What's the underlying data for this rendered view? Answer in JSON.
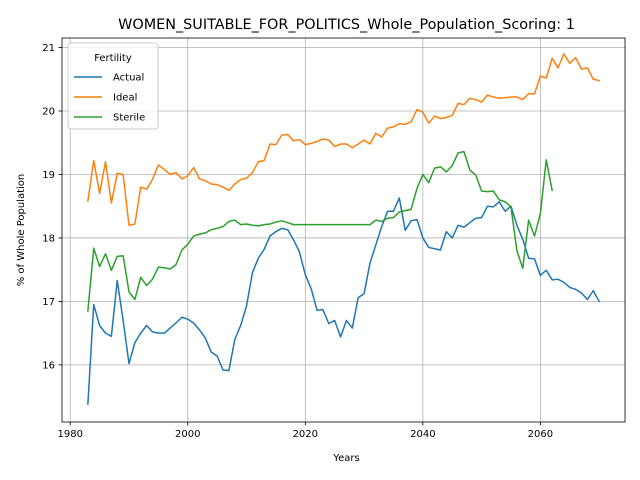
{
  "chart_data": {
    "type": "line",
    "title": "WOMEN_SUITABLE_FOR_POLITICS_Whole_Population_Scoring: 1",
    "xlabel": "Years",
    "ylabel": "% of Whole Population",
    "xlim": [
      1978.6,
      2074.4
    ],
    "ylim": [
      15.1,
      21.15
    ],
    "xticks": [
      1980,
      2000,
      2020,
      2040,
      2060
    ],
    "yticks": [
      16,
      17,
      18,
      19,
      20,
      21
    ],
    "grid": true,
    "legend": {
      "title": "Fertility",
      "placement": "top-left"
    },
    "series": [
      {
        "name": "Actual",
        "color": "#1f77b4",
        "x": [
          1983,
          1984,
          1985,
          1986,
          1987,
          1988,
          1989,
          1990,
          1991,
          1992,
          1993,
          1994,
          1995,
          1996,
          1997,
          1998,
          1999,
          2000,
          2001,
          2002,
          2003,
          2004,
          2005,
          2006,
          2007,
          2008,
          2009,
          2010,
          2011,
          2012,
          2013,
          2014,
          2015,
          2016,
          2017,
          2018,
          2019,
          2020,
          2021,
          2022,
          2023,
          2024,
          2025,
          2026,
          2027,
          2028,
          2029,
          2030,
          2031,
          2032,
          2033,
          2034,
          2035,
          2036,
          2037,
          2038,
          2039,
          2040,
          2041,
          2042,
          2043,
          2044,
          2045,
          2046,
          2047,
          2048,
          2049,
          2050,
          2051,
          2052,
          2053,
          2054,
          2055,
          2056,
          2057,
          2058,
          2059,
          2060,
          2061,
          2062,
          2063,
          2064,
          2065,
          2066,
          2067,
          2068,
          2069,
          2070
        ],
        "y": [
          15.38,
          16.95,
          16.62,
          16.5,
          16.45,
          17.33,
          16.7,
          16.02,
          16.35,
          16.5,
          16.62,
          16.52,
          16.5,
          16.5,
          16.58,
          16.66,
          16.75,
          16.72,
          16.66,
          16.55,
          16.42,
          16.2,
          16.14,
          15.92,
          15.91,
          16.4,
          16.62,
          16.93,
          17.45,
          17.68,
          17.82,
          18.03,
          18.1,
          18.15,
          18.13,
          17.97,
          17.78,
          17.42,
          17.2,
          16.86,
          16.87,
          16.65,
          16.7,
          16.44,
          16.7,
          16.58,
          17.06,
          17.12,
          17.6,
          17.89,
          18.18,
          18.42,
          18.42,
          18.63,
          18.12,
          18.27,
          18.29,
          18.0,
          17.85,
          17.83,
          17.81,
          18.1,
          18.0,
          18.2,
          18.17,
          18.24,
          18.31,
          18.32,
          18.5,
          18.49,
          18.57,
          18.42,
          18.5,
          18.2,
          17.98,
          17.68,
          17.67,
          17.41,
          17.49,
          17.34,
          17.35,
          17.3,
          17.22,
          17.19,
          17.13,
          17.03,
          17.17,
          17.0
        ]
      },
      {
        "name": "Ideal",
        "color": "#ff7f0e",
        "x": [
          1983,
          1984,
          1985,
          1986,
          1987,
          1988,
          1989,
          1990,
          1991,
          1992,
          1993,
          1994,
          1995,
          1996,
          1997,
          1998,
          1999,
          2000,
          2001,
          2002,
          2003,
          2004,
          2005,
          2006,
          2007,
          2008,
          2009,
          2010,
          2011,
          2012,
          2013,
          2014,
          2015,
          2016,
          2017,
          2018,
          2019,
          2020,
          2021,
          2022,
          2023,
          2024,
          2025,
          2026,
          2027,
          2028,
          2029,
          2030,
          2031,
          2032,
          2033,
          2034,
          2035,
          2036,
          2037,
          2038,
          2039,
          2040,
          2041,
          2042,
          2043,
          2044,
          2045,
          2046,
          2047,
          2048,
          2049,
          2050,
          2051,
          2052,
          2053,
          2054,
          2055,
          2056,
          2057,
          2058,
          2059,
          2060,
          2061,
          2062,
          2063,
          2064,
          2065,
          2066,
          2067,
          2068,
          2069,
          2070
        ],
        "y": [
          18.58,
          19.22,
          18.7,
          19.2,
          18.55,
          19.02,
          19.0,
          18.2,
          18.22,
          18.8,
          18.77,
          18.92,
          19.15,
          19.08,
          19.0,
          19.03,
          18.93,
          18.98,
          19.11,
          18.93,
          18.9,
          18.85,
          18.84,
          18.8,
          18.75,
          18.85,
          18.92,
          18.94,
          19.03,
          19.2,
          19.22,
          19.48,
          19.47,
          19.62,
          19.63,
          19.53,
          19.55,
          19.47,
          19.49,
          19.52,
          19.56,
          19.54,
          19.44,
          19.48,
          19.48,
          19.42,
          19.48,
          19.54,
          19.48,
          19.65,
          19.59,
          19.73,
          19.75,
          19.8,
          19.79,
          19.83,
          20.02,
          19.98,
          19.81,
          19.92,
          19.88,
          19.9,
          19.93,
          20.12,
          20.1,
          20.2,
          20.18,
          20.14,
          20.25,
          20.22,
          20.2,
          20.21,
          20.22,
          20.22,
          20.18,
          20.27,
          20.27,
          20.55,
          20.52,
          20.83,
          20.68,
          20.9,
          20.75,
          20.84,
          20.66,
          20.68,
          20.5,
          20.48
        ]
      },
      {
        "name": "Sterile",
        "color": "#2ca02c",
        "x": [
          1983,
          1984,
          1985,
          1986,
          1987,
          1988,
          1989,
          1990,
          1991,
          1992,
          1993,
          1994,
          1995,
          1996,
          1997,
          1998,
          1999,
          2000,
          2001,
          2002,
          2003,
          2004,
          2005,
          2006,
          2007,
          2008,
          2009,
          2010,
          2011,
          2012,
          2013,
          2014,
          2015,
          2016,
          2017,
          2018,
          2019,
          2020,
          2021,
          2022,
          2023,
          2024,
          2025,
          2026,
          2027,
          2028,
          2029,
          2030,
          2031,
          2032,
          2033,
          2034,
          2035,
          2036,
          2037,
          2038,
          2039,
          2040,
          2041,
          2042,
          2043,
          2044,
          2045,
          2046,
          2047,
          2048,
          2049,
          2050,
          2051,
          2052,
          2053,
          2054,
          2055,
          2056,
          2057,
          2058,
          2059,
          2060,
          2061,
          2062
        ],
        "y": [
          16.85,
          17.84,
          17.55,
          17.75,
          17.49,
          17.71,
          17.72,
          17.15,
          17.03,
          17.38,
          17.25,
          17.35,
          17.54,
          17.53,
          17.51,
          17.58,
          17.81,
          17.9,
          18.03,
          18.06,
          18.08,
          18.13,
          18.15,
          18.18,
          18.26,
          18.28,
          18.21,
          18.22,
          18.2,
          18.19,
          18.21,
          18.22,
          18.25,
          18.27,
          18.24,
          18.21,
          18.21,
          18.21,
          18.21,
          18.21,
          18.21,
          18.21,
          18.21,
          18.21,
          18.21,
          18.21,
          18.21,
          18.21,
          18.21,
          18.28,
          18.26,
          18.31,
          18.32,
          18.41,
          18.43,
          18.45,
          18.78,
          19.0,
          18.87,
          19.1,
          19.12,
          19.04,
          19.14,
          19.34,
          19.36,
          19.07,
          18.99,
          18.74,
          18.73,
          18.74,
          18.6,
          18.57,
          18.49,
          17.8,
          17.52,
          18.28,
          18.03,
          18.38,
          19.23,
          18.75
        ]
      }
    ]
  }
}
